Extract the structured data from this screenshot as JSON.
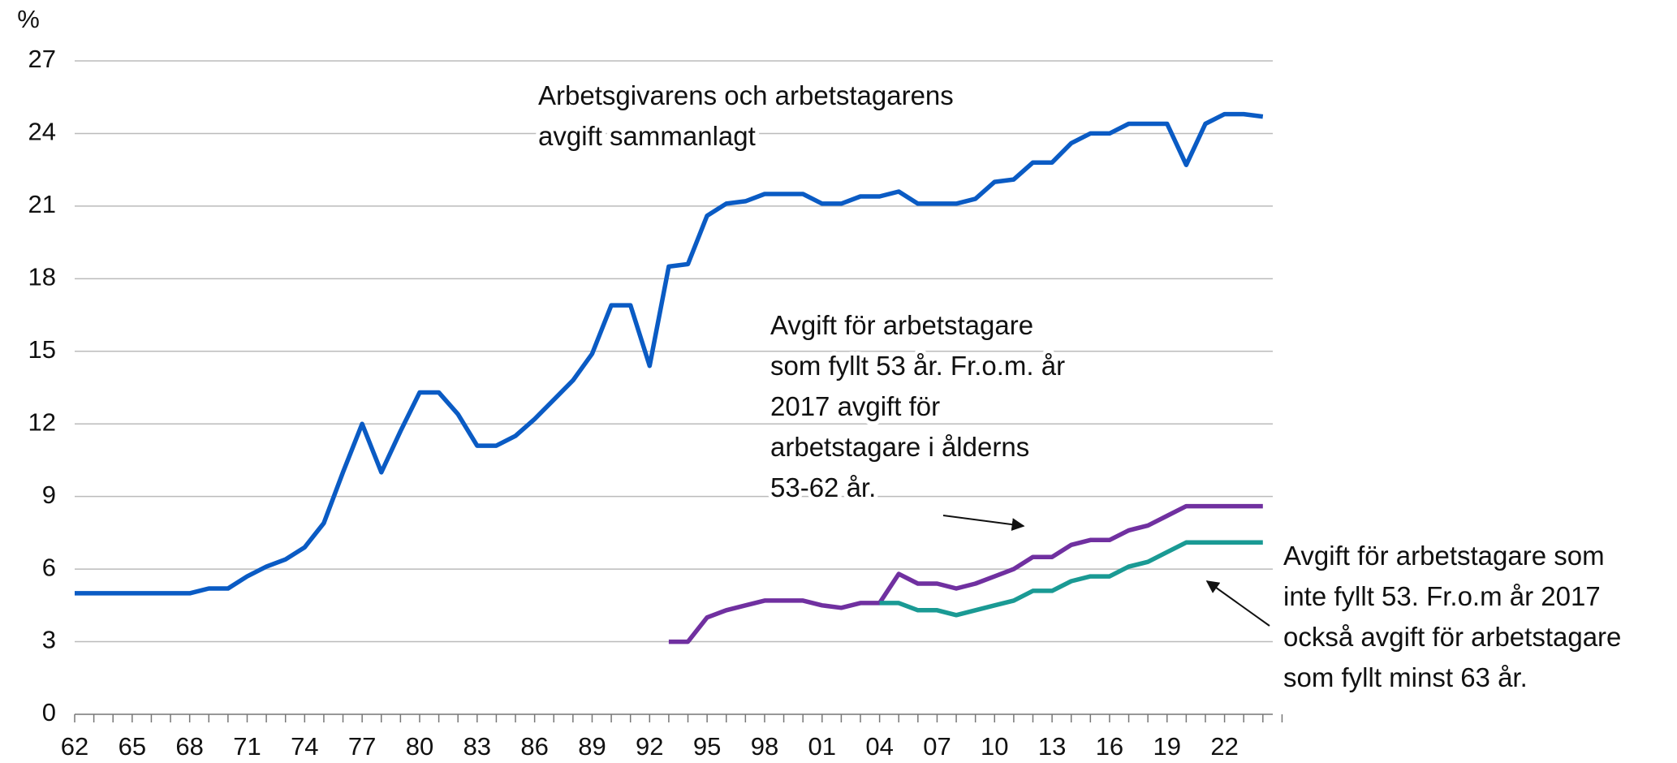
{
  "chart_data": {
    "type": "line",
    "y_label": "%",
    "categories": [
      "62",
      null,
      null,
      "65",
      null,
      null,
      "68",
      null,
      null,
      "71",
      null,
      null,
      "74",
      null,
      null,
      "77",
      null,
      null,
      "80",
      null,
      null,
      "83",
      null,
      null,
      "86",
      null,
      null,
      "89",
      null,
      null,
      "92",
      null,
      null,
      "95",
      null,
      null,
      "98",
      null,
      null,
      "01",
      null,
      null,
      "04",
      null,
      null,
      "07",
      null,
      null,
      "10",
      null,
      null,
      "13",
      null,
      null,
      "16",
      null,
      null,
      "19",
      null,
      null,
      "22",
      null,
      null
    ],
    "series": [
      {
        "name": "Arbetsgivarens och arbetstagarens avgift sammanlagt",
        "color": "#0a5bc4",
        "values": [
          5.0,
          5.0,
          5.0,
          5.0,
          5.0,
          5.0,
          5.0,
          5.2,
          5.2,
          5.7,
          6.1,
          6.4,
          6.9,
          7.9,
          10.0,
          12.0,
          10.0,
          11.7,
          13.3,
          13.3,
          12.4,
          11.1,
          11.1,
          11.5,
          12.2,
          13.0,
          13.8,
          14.9,
          16.9,
          16.9,
          14.4,
          18.5,
          18.6,
          20.6,
          21.1,
          21.2,
          21.5,
          21.5,
          21.5,
          21.1,
          21.1,
          21.4,
          21.4,
          21.6,
          21.1,
          21.1,
          21.1,
          21.3,
          22.0,
          22.1,
          22.8,
          22.8,
          23.6,
          24.0,
          24.0,
          24.4,
          24.4,
          24.4,
          22.7,
          24.4,
          24.8,
          24.8,
          24.7
        ]
      },
      {
        "name": "Avgift för arbetstagare som fyllt 53 år. Fr.o.m. år 2017 avgift för arbetstagare i ålderns 53-62 år.",
        "color": "#7030a0",
        "values": [
          null,
          null,
          null,
          null,
          null,
          null,
          null,
          null,
          null,
          null,
          null,
          null,
          null,
          null,
          null,
          null,
          null,
          null,
          null,
          null,
          null,
          null,
          null,
          null,
          null,
          null,
          null,
          null,
          null,
          null,
          null,
          3.0,
          3.0,
          4.0,
          4.3,
          4.5,
          4.7,
          4.7,
          4.7,
          4.5,
          4.4,
          4.6,
          4.6,
          5.8,
          5.4,
          5.4,
          5.2,
          5.4,
          5.7,
          6.0,
          6.5,
          6.5,
          7.0,
          7.2,
          7.2,
          7.6,
          7.8,
          8.2,
          8.6,
          8.6,
          8.6,
          8.6,
          8.6
        ]
      },
      {
        "name": "Avgift för arbetstagare som inte fyllt 53. Fr.o.m år 2017 också avgift för arbetstagare som fyllt minst 63 år.",
        "color": "#1a9a94",
        "values": [
          null,
          null,
          null,
          null,
          null,
          null,
          null,
          null,
          null,
          null,
          null,
          null,
          null,
          null,
          null,
          null,
          null,
          null,
          null,
          null,
          null,
          null,
          null,
          null,
          null,
          null,
          null,
          null,
          null,
          null,
          null,
          null,
          null,
          null,
          null,
          null,
          null,
          null,
          null,
          null,
          null,
          null,
          4.6,
          4.6,
          4.3,
          4.3,
          4.1,
          4.3,
          4.5,
          4.7,
          5.1,
          5.1,
          5.5,
          5.7,
          5.7,
          6.1,
          6.3,
          6.7,
          7.1,
          7.1,
          7.1,
          7.1,
          7.1
        ]
      }
    ],
    "annotations": [
      [
        "Arbetsgivarens och arbetstagarens",
        "avgift sammanlagt"
      ],
      [
        "Avgift för arbetstagare",
        "som fyllt 53 år. Fr.o.m. år",
        "2017 avgift för",
        "arbetstagare i ålderns",
        "53-62 år."
      ],
      [
        "Avgift för arbetstagare som",
        "inte fyllt 53. Fr.o.m år 2017",
        "också avgift för arbetstagare",
        "som fyllt minst 63 år."
      ]
    ],
    "ylim": [
      0,
      27
    ],
    "yticks": [
      0,
      3,
      6,
      9,
      12,
      15,
      18,
      21,
      24,
      27
    ],
    "grid": true
  }
}
